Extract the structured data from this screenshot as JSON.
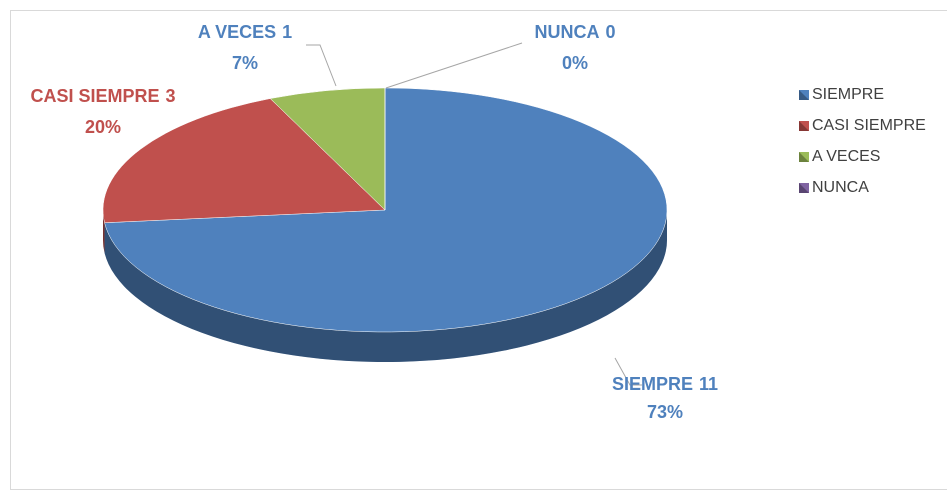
{
  "chart_data": {
    "type": "pie",
    "categories": [
      "SIEMPRE",
      "CASI SIEMPRE",
      "A VECES",
      "NUNCA"
    ],
    "values": [
      11,
      3,
      1,
      0
    ],
    "percent_labels": [
      "73%",
      "20%",
      "7%",
      "0%"
    ],
    "colors": [
      "#4f81bd",
      "#c0504d",
      "#9bbb59",
      "#8064a2"
    ],
    "label_colors": [
      "#4f81bd",
      "#c0504d",
      "#4f81bd",
      "#4f81bd"
    ],
    "legend": "right"
  }
}
